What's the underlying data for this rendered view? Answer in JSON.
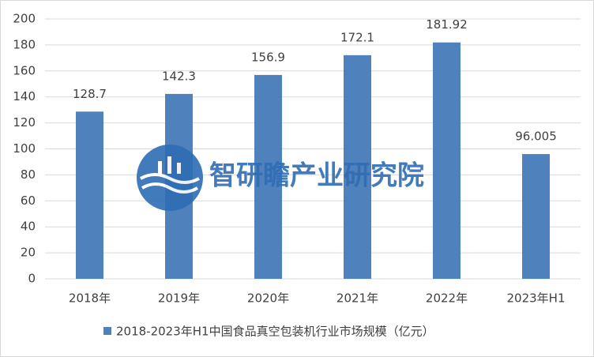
{
  "chart_data": {
    "type": "bar",
    "categories": [
      "2018年",
      "2019年",
      "2020年",
      "2021年",
      "2022年",
      "2023年H1"
    ],
    "series": [
      {
        "name": "2018-2023年H1中国食品真空包装机行业市场规模（亿元）",
        "color": "#4f81bd",
        "values": [
          128.7,
          142.3,
          156.9,
          172.1,
          181.92,
          96.005
        ]
      }
    ],
    "ylim": [
      0,
      200
    ],
    "yticks": [
      0,
      20,
      40,
      60,
      80,
      100,
      120,
      140,
      160,
      180,
      200
    ],
    "grid": true,
    "legend": "bottom",
    "watermark": "智研瞻产业研究院"
  }
}
